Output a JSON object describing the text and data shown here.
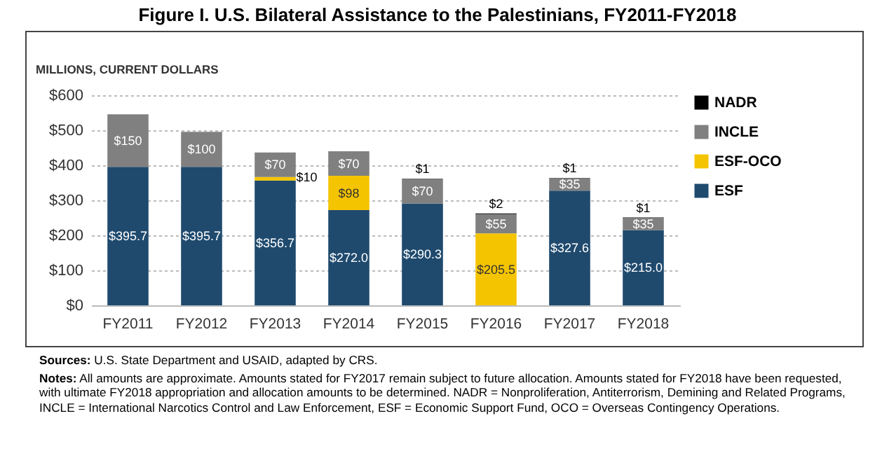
{
  "chart_data": {
    "type": "bar",
    "title": "Figure I. U.S. Bilateral Assistance to the Palestinians, FY2011-FY2018",
    "ylabel": "MILLIONS, CURRENT DOLLARS",
    "annotations": [
      "Sources: U.S. State Department and USAID, adapted by CRS.",
      "Notes: All amounts are approximate. Amounts stated for FY2017 remain subject to future allocation. Amounts stated for FY2018 have been requested, with ultimate FY2018 appropriation and allocation amounts to be determined. NADR = Nonproliferation, Antiterrorism, Demining and Related Programs, INCLE = International Narcotics Control and Law Enforcement, ESF = Economic Support Fund, OCO = Overseas Contingency Operations."
    ],
    "categories": [
      "FY2011",
      "FY2012",
      "FY2013",
      "FY2014",
      "FY2015",
      "FY2016",
      "FY2017",
      "FY2018"
    ],
    "stacked": true,
    "series": [
      {
        "name": "ESF",
        "color": "#1f4a6e",
        "values": [
          395.7,
          395.7,
          356.7,
          272.0,
          290.3,
          null,
          327.6,
          215.0
        ],
        "value_labels": [
          "$395.7",
          "$395.7",
          "$356.7",
          "$272.0",
          "$290.3",
          null,
          "$327.6",
          "$215.0"
        ]
      },
      {
        "name": "ESF-OCO",
        "color": "#f5c400",
        "values": [
          null,
          null,
          10,
          98,
          null,
          205.5,
          null,
          null
        ],
        "value_labels": [
          null,
          null,
          "$10",
          "$98",
          null,
          "$205.5",
          null,
          null
        ]
      },
      {
        "name": "INCLE",
        "color": "#808080",
        "values": [
          150,
          100,
          70,
          70,
          70,
          55,
          35,
          35
        ],
        "value_labels": [
          "$150",
          "$100",
          "$70",
          "$70",
          "$70",
          "$55",
          "$35",
          "$35"
        ]
      },
      {
        "name": "NADR",
        "color": "#000000",
        "values": [
          null,
          null,
          null,
          null,
          1,
          2,
          1,
          1
        ],
        "value_labels": [
          null,
          null,
          null,
          null,
          "$1",
          "$2",
          "$1",
          "$1"
        ]
      }
    ],
    "ylim": [
      0,
      600
    ],
    "yticks": [
      {
        "value": 0,
        "label": "$0"
      },
      {
        "value": 100,
        "label": "$100"
      },
      {
        "value": 200,
        "label": "$200"
      },
      {
        "value": 300,
        "label": "$300"
      },
      {
        "value": 400,
        "label": "$400"
      },
      {
        "value": 500,
        "label": "$500"
      },
      {
        "value": 600,
        "label": "$600"
      }
    ],
    "grid": "y",
    "legend": "right"
  }
}
